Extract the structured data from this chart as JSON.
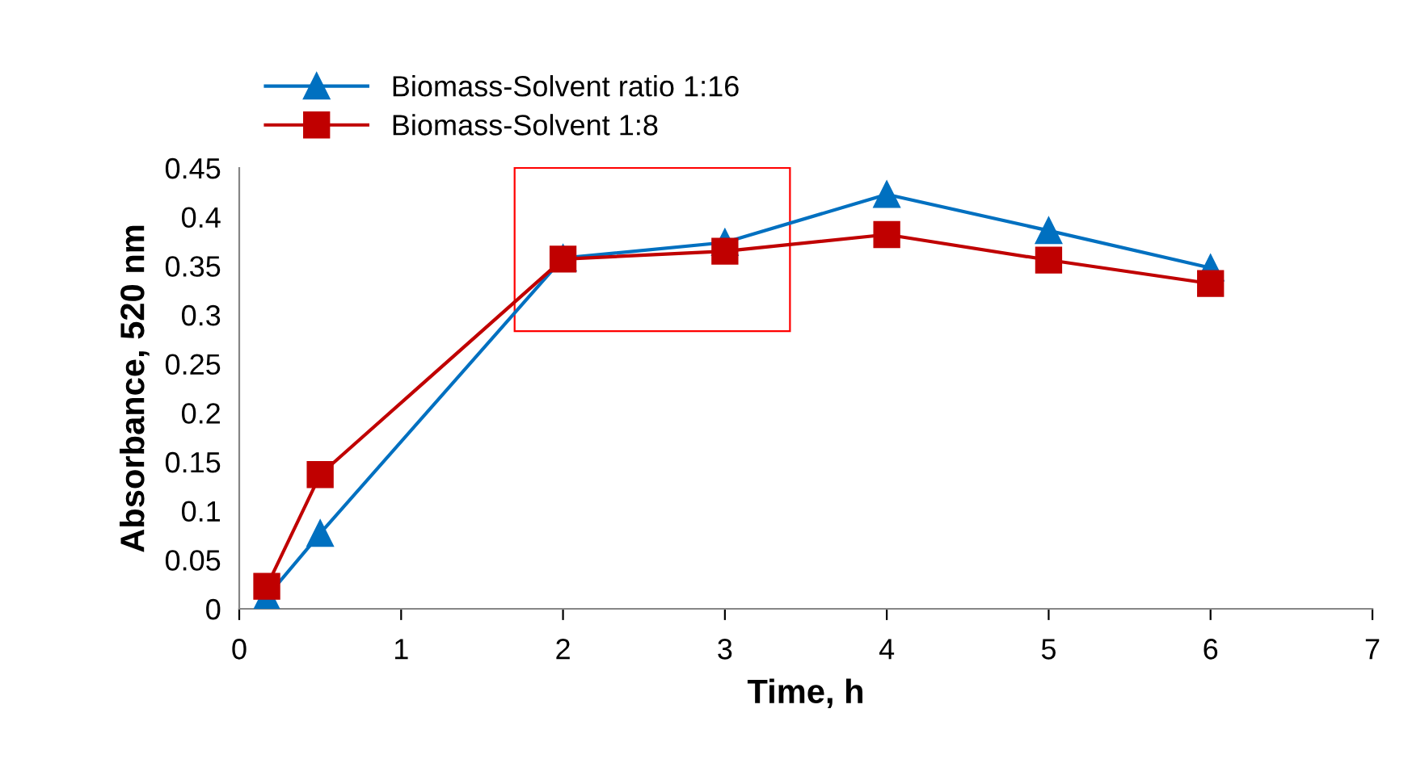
{
  "chart_data": {
    "type": "line",
    "xlabel": "Time, h",
    "ylabel": "Absorbance, 520 nm",
    "xlim": [
      0,
      7
    ],
    "xticks": [
      0,
      1,
      2,
      3,
      4,
      5,
      6,
      7
    ],
    "ylim": [
      0,
      0.45
    ],
    "yticks": [
      0,
      0.05,
      0.1,
      0.15,
      0.2,
      0.25,
      0.3,
      0.35,
      0.4,
      0.45
    ],
    "grid": false,
    "legend": "top left",
    "series": [
      {
        "name": "Biomass-Solvent ratio 1:16",
        "color": "#0070c0",
        "marker": "triangle",
        "x": [
          0.17,
          0.5,
          2,
          3,
          4,
          5,
          6
        ],
        "values": [
          0.012,
          0.077,
          0.358,
          0.374,
          0.423,
          0.386,
          0.348
        ]
      },
      {
        "name": "Biomass-Solvent 1:8",
        "color": "#c00000",
        "marker": "square",
        "x": [
          0.17,
          0.5,
          2,
          3,
          4,
          5,
          6
        ],
        "values": [
          0.023,
          0.137,
          0.357,
          0.365,
          0.382,
          0.356,
          0.332
        ]
      }
    ]
  }
}
